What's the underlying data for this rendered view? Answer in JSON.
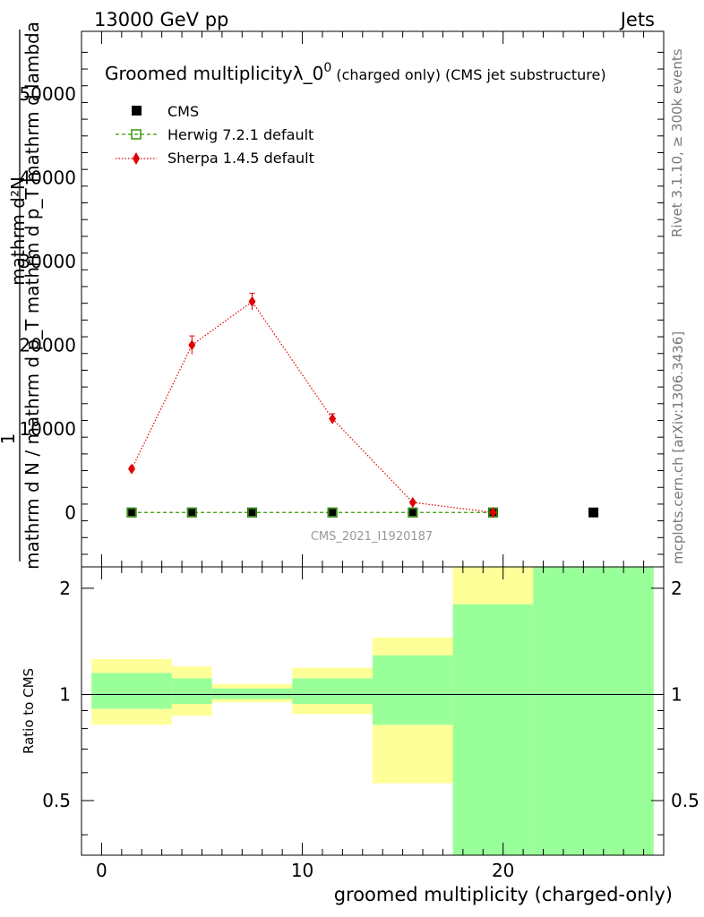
{
  "header": {
    "energy": "13000 GeV pp",
    "category": "Jets"
  },
  "side": {
    "rivet": "Rivet 3.1.10, ≥ 300k events",
    "mcplots": "mcplots.cern.ch [arXiv:1306.3436]"
  },
  "chart_data": [
    {
      "type": "line",
      "title": "Groomed multiplicityλ_0⁰ (charged only) (CMS jet substructure)",
      "title_main": "Groomed multiplicityλ_0",
      "title_sup": "0",
      "title_rest": " (charged only) (CMS jet substructure)",
      "ylabel_lines": [
        "1",
        "mathrm d N / mathrm d p_T mathrm d p_T mathrm d lambda",
        "mathrm d²N"
      ],
      "watermark": "CMS_2021_I1920187",
      "xlim": [
        -1,
        28
      ],
      "ylim": [
        -6500,
        57500
      ],
      "yticks": [
        0,
        10000,
        20000,
        30000,
        40000,
        50000
      ],
      "ytick_labels": [
        "0",
        "10000",
        "20000",
        "30000",
        "40000",
        "50000"
      ],
      "legend_position": "top-left",
      "series": [
        {
          "name": "CMS",
          "color": "#000000",
          "x": [
            1.5,
            4.5,
            7.5,
            11.5,
            15.5,
            19.5,
            24.5
          ],
          "y": [
            0,
            0,
            0,
            0,
            0,
            0,
            0
          ]
        },
        {
          "name": "Herwig 7.2.1 default",
          "color": "#339900",
          "x": [
            1.5,
            4.5,
            7.5,
            11.5,
            15.5,
            19.5
          ],
          "y": [
            0,
            0,
            0,
            0,
            0,
            0
          ]
        },
        {
          "name": "Sherpa 1.4.5 default",
          "color": "#e00000",
          "x": [
            1.5,
            4.5,
            7.5,
            11.5,
            15.5,
            19.5
          ],
          "y": [
            5200,
            20000,
            25200,
            11200,
            1200,
            0
          ],
          "yerr": [
            250,
            1100,
            1000,
            600,
            150,
            0
          ]
        }
      ]
    },
    {
      "type": "area",
      "ylabel": "Ratio to CMS",
      "xlabel": "groomed multiplicity (charged-only)",
      "xlim": [
        -1,
        28
      ],
      "ylim": [
        0.35,
        2.3
      ],
      "scale": "log",
      "xticks": [
        0,
        10,
        20
      ],
      "xtick_labels": [
        "0",
        "10",
        "20"
      ],
      "yticks": [
        0.5,
        1,
        2
      ],
      "ytick_labels": [
        "0.5",
        "1",
        "2"
      ],
      "bands": [
        {
          "x0": -0.5,
          "x1": 3.5,
          "outer": [
            0.82,
            1.26
          ],
          "inner": [
            0.91,
            1.15
          ]
        },
        {
          "x0": 3.5,
          "x1": 5.5,
          "outer": [
            0.87,
            1.2
          ],
          "inner": [
            0.94,
            1.11
          ]
        },
        {
          "x0": 5.5,
          "x1": 9.5,
          "outer": [
            0.95,
            1.07
          ],
          "inner": [
            0.97,
            1.04
          ]
        },
        {
          "x0": 9.5,
          "x1": 13.5,
          "outer": [
            0.88,
            1.19
          ],
          "inner": [
            0.94,
            1.11
          ]
        },
        {
          "x0": 13.5,
          "x1": 17.5,
          "outer": [
            0.56,
            1.45
          ],
          "inner": [
            0.82,
            1.29
          ]
        },
        {
          "x0": 17.5,
          "x1": 21.5,
          "outer": [
            0.35,
            2.3
          ],
          "inner": [
            0.35,
            1.8
          ]
        },
        {
          "x0": 21.5,
          "x1": 27.5,
          "outer": [
            0.35,
            2.3
          ],
          "inner": [
            0.35,
            2.3
          ]
        }
      ]
    }
  ]
}
